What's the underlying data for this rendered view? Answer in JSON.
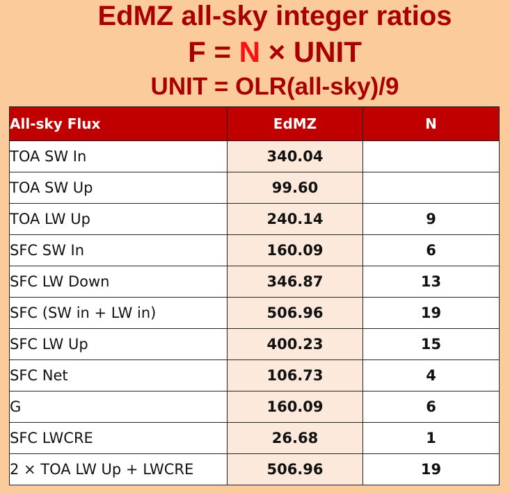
{
  "title": {
    "line1": "EdMZ all-sky integer ratios",
    "line2_prefix": "F = ",
    "line2_n": "N",
    "line2_suffix": " × UNIT",
    "line3": "UNIT = OLR(all-sky)/9"
  },
  "table": {
    "headers": [
      "All-sky Flux",
      "EdMZ",
      "N"
    ],
    "rows": [
      {
        "name": "TOA SW In",
        "edmz": "340.04",
        "n": ""
      },
      {
        "name": "TOA SW Up",
        "edmz": "99.60",
        "n": ""
      },
      {
        "name": "TOA LW Up",
        "edmz": "240.14",
        "n": "9"
      },
      {
        "name": "SFC SW In",
        "edmz": "160.09",
        "n": "6"
      },
      {
        "name": "SFC LW Down",
        "edmz": "346.87",
        "n": "13"
      },
      {
        "name": "SFC (SW in + LW in)",
        "edmz": "506.96",
        "n": "19"
      },
      {
        "name": "SFC LW Up",
        "edmz": "400.23",
        "n": "15"
      },
      {
        "name": "SFC Net",
        "edmz": "106.73",
        "n": "4"
      },
      {
        "name": "G",
        "edmz": "160.09",
        "n": "6"
      },
      {
        "name": "SFC LWCRE",
        "edmz": "26.68",
        "n": "1"
      },
      {
        "name": "2 × TOA LW Up + LWCRE",
        "edmz": "506.96",
        "n": "19"
      }
    ]
  },
  "colors": {
    "background": "#fccb9b",
    "title": "#a80000",
    "highlight": "#ff1010",
    "header": "#c00000",
    "value_cell": "#fce9dc"
  }
}
